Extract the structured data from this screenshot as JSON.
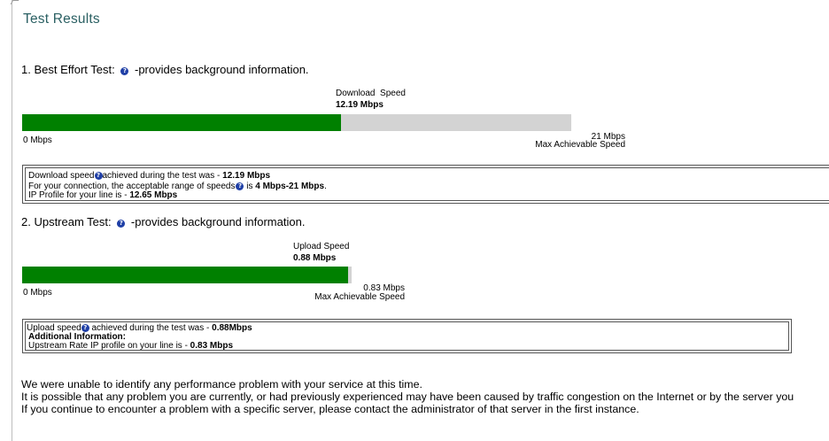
{
  "page": {
    "title": "Test Results"
  },
  "downstream": {
    "heading_prefix": "1. Best Effort Test:",
    "heading_suffix": "-provides background information.",
    "speed_label": "Download  Speed",
    "speed_value": "12.19 Mbps",
    "min_label": "0 Mbps",
    "max_value": "21 Mbps",
    "max_label": "Max Achievable Speed",
    "bar_fraction": 0.58,
    "info": {
      "line1_a": "Download speed",
      "line1_b": "achieved during the test was - ",
      "line1_value": "12.19 Mbps",
      "line2_a": "For your connection, the acceptable range of speeds",
      "line2_b": " is ",
      "line2_value": "4 Mbps-21 Mbps",
      "line2_end": ".",
      "line3_a": "IP Profile for your line is - ",
      "line3_value": "12.65 Mbps"
    }
  },
  "upstream": {
    "heading_prefix": "2. Upstream Test:",
    "heading_suffix": "-provides background information.",
    "speed_label": "Upload Speed",
    "speed_value": "0.88 Mbps",
    "min_label": "0 Mbps",
    "max_value": "0.83 Mbps",
    "max_label": "Max Achievable Speed",
    "bar_fraction": 0.99,
    "info": {
      "line1_a": "Upload speed",
      "line1_b": " achieved during the test was - ",
      "line1_value": "0.88Mbps",
      "line2": "Additional Information:",
      "line3_a": "Upstream Rate IP profile on your line is - ",
      "line3_value": "0.83 Mbps"
    }
  },
  "footer": {
    "line1": "We were unable to identify any performance problem with your service at this time.",
    "line2": "It is possible that any problem you are currently, or had previously experienced may have been caused by traffic congestion on the Internet or by the server you",
    "line3": "If you continue to encounter a problem with a specific server, please contact the administrator of that server in the first instance."
  },
  "colors": {
    "bar_fill": "#008000",
    "bar_track": "#d3d3d3",
    "title": "#2b6063",
    "help_icon": "#1f3fa6"
  }
}
